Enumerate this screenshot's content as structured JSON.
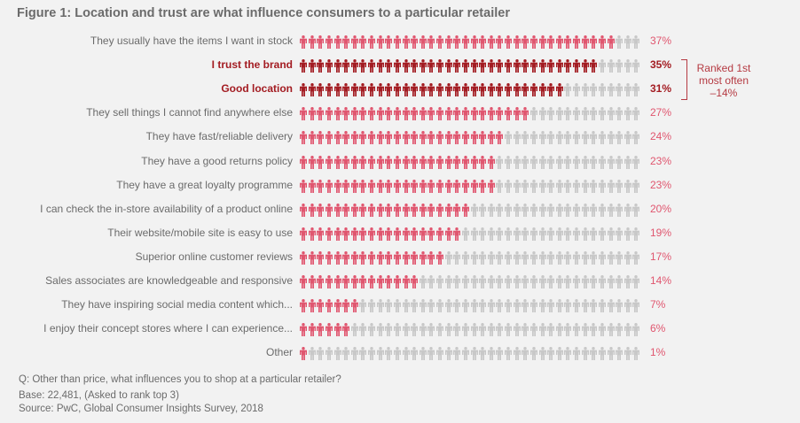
{
  "header": {
    "title": "Figure 1: Location and trust are what influence consumers to a particular retailer"
  },
  "colors": {
    "background": "#f2f2f2",
    "filled": "#e0566f",
    "highlight": "#a31c22",
    "empty": "#c8c8c8",
    "text": "#6b6b6b",
    "bracket": "#b53a42"
  },
  "annotation": {
    "line1": "Ranked 1st",
    "line2": "most often",
    "line3": "–14%"
  },
  "footer": {
    "question": "Q: Other than price, what influences you to shop at a particular retailer?",
    "base": "Base: 22,481, (Asked to rank top 3)",
    "source": "Source: PwC, Global Consumer Insights Survey, 2018"
  },
  "chart_data": {
    "type": "bar",
    "subtype": "pictogram",
    "title": "Figure 1: Location and trust are what influence consumers to a particular retailer",
    "icons_per_row": 40,
    "icon_unit": "1%",
    "categories": [
      "They usually have the items I want in stock",
      "I trust the brand",
      "Good location",
      "They sell things I cannot find anywhere else",
      "They have fast/reliable delivery",
      "They have a good returns policy",
      "They have a great loyalty programme",
      "I can check the in-store availability of a product online",
      "Their website/mobile site is easy to use",
      "Superior online customer reviews",
      "Sales associates are knowledgeable and responsive",
      "They have inspiring social media content which...",
      "I enjoy their concept stores where I can experience...",
      "Other"
    ],
    "values": [
      37,
      35,
      31,
      27,
      24,
      23,
      23,
      20,
      19,
      17,
      14,
      7,
      6,
      1
    ],
    "value_labels": [
      "37%",
      "35%",
      "31%",
      "27%",
      "24%",
      "23%",
      "23%",
      "20%",
      "19%",
      "17%",
      "14%",
      "7%",
      "6%",
      "1%"
    ],
    "highlighted": [
      "I trust the brand",
      "Good location"
    ],
    "annotations": [
      "Ranked 1st most often –14% (bracket spanning 'I trust the brand' and 'Good location')"
    ],
    "xlabel": "",
    "ylabel": "",
    "legend": "none",
    "grid": false
  }
}
